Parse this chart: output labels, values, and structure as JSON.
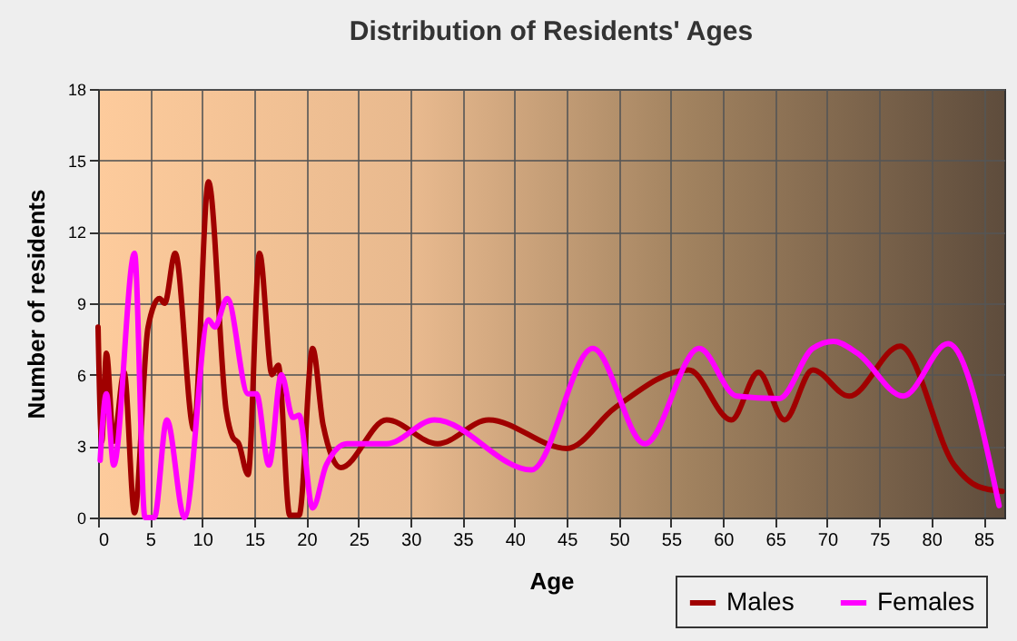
{
  "chart_data": {
    "type": "line",
    "title": "Distribution of Residents' Ages",
    "xlabel": "Age",
    "ylabel": "Number of residents",
    "xlim": [
      0,
      87
    ],
    "xticks": [
      0,
      5,
      10,
      15,
      20,
      25,
      30,
      35,
      40,
      45,
      50,
      55,
      60,
      65,
      70,
      75,
      80,
      85
    ],
    "ylim": [
      0,
      18
    ],
    "yticks": [
      0,
      3,
      6,
      9,
      12,
      15,
      18
    ],
    "grid": true,
    "legend": "bottom right",
    "series": [
      {
        "name": "Males",
        "color": "#a00000",
        "x": [
          0,
          0.35,
          0.8,
          1.5,
          2.5,
          3.5,
          4.8,
          5.9,
          6.4,
          7.4,
          9.2,
          10.6,
          12.3,
          12.9,
          13.5,
          14.4,
          15.5,
          16.7,
          17.3,
          18.4,
          19.3,
          20.6,
          21.6,
          23.3,
          27.7,
          32.6,
          37.5,
          45,
          49.6,
          56.7,
          60.8,
          63.4,
          65.9,
          68.6,
          72.1,
          77,
          82.2,
          84.5,
          86.8
        ],
        "values": [
          8,
          3.2,
          6.9,
          3.2,
          6.1,
          0.2,
          8,
          9.2,
          9,
          11.1,
          3.7,
          14.1,
          4.5,
          3.4,
          3.1,
          1.8,
          11.1,
          6,
          6.4,
          0.1,
          0.1,
          7.1,
          3.9,
          2.1,
          4.1,
          3.1,
          4.1,
          2.9,
          4.6,
          6.2,
          4.1,
          6.1,
          4.1,
          6.2,
          5.1,
          7.2,
          2.2,
          1.3,
          1.1
        ]
      },
      {
        "name": "Females",
        "color": "#ff00ff",
        "x": [
          0.2,
          0.8,
          1.5,
          3.5,
          4.5,
          5.4,
          6.6,
          8.3,
          10.6,
          11.2,
          12.4,
          14.4,
          15.2,
          16.4,
          17.6,
          18.7,
          19.3,
          20.6,
          21.9,
          23.9,
          27.7,
          32.3,
          41.6,
          47.5,
          52.5,
          57.7,
          61.3,
          65.4,
          68.6,
          70.6,
          72.9,
          77.3,
          81.6,
          86.5
        ],
        "values": [
          2.4,
          5.2,
          2.2,
          11.1,
          0,
          0,
          4.1,
          0,
          8.3,
          8,
          9.2,
          5.2,
          5.2,
          2.2,
          6,
          4.2,
          4.3,
          0.4,
          2.2,
          3.1,
          3.1,
          4.1,
          2,
          7.1,
          3.1,
          7.1,
          5.1,
          5,
          7.1,
          7.4,
          6.9,
          5.1,
          7.3,
          0.5
        ]
      }
    ]
  }
}
